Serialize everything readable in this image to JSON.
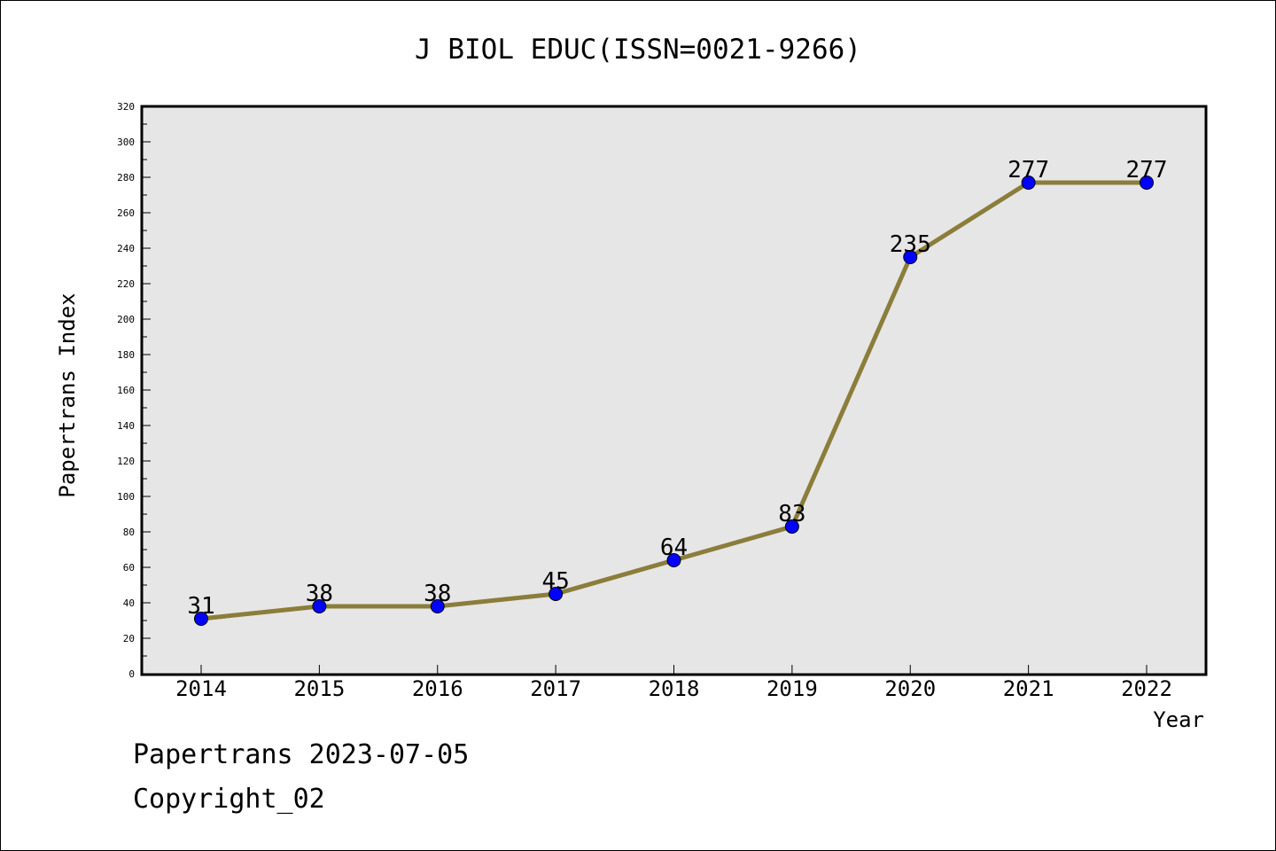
{
  "chart_data": {
    "type": "line",
    "title": "J BIOL EDUC(ISSN=0021-9266)",
    "xlabel": "Year",
    "ylabel": "Papertrans Index",
    "categories": [
      "2014",
      "2015",
      "2016",
      "2017",
      "2018",
      "2019",
      "2020",
      "2021",
      "2022"
    ],
    "series": [
      {
        "values": [
          31,
          38,
          38,
          45,
          64,
          83,
          235,
          277,
          277
        ]
      }
    ],
    "ylim": [
      0,
      320
    ],
    "yticks": [
      0,
      20,
      40,
      60,
      80,
      100,
      120,
      140,
      160,
      180,
      200,
      220,
      240,
      260,
      280,
      300,
      320
    ],
    "grid": false,
    "data_labels": true,
    "colors": {
      "line": "#8B7D3A",
      "marker": "#0000FF",
      "plot_background": "#E6E6E6"
    }
  },
  "footer": {
    "line1": "Papertrans 2023-07-05",
    "line2": "Copyright_02"
  }
}
